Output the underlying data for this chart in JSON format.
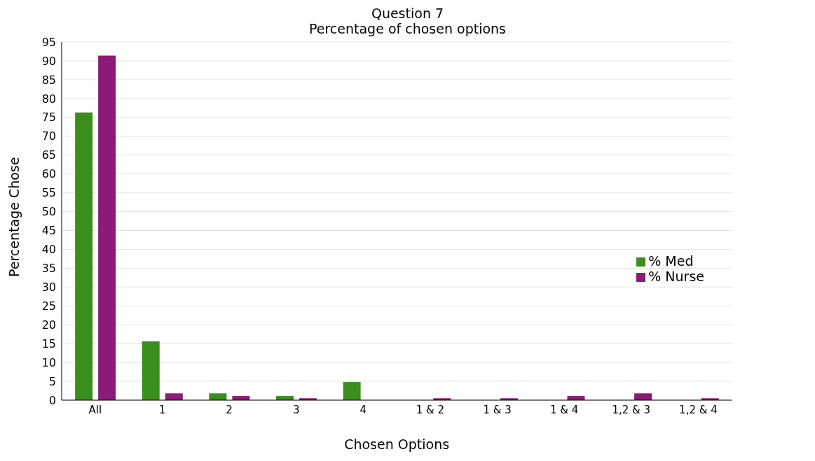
{
  "chart_data": {
    "type": "bar",
    "title": "Question 7",
    "subtitle": "Percentage of chosen options",
    "xlabel": "Chosen Options",
    "ylabel": "Percentage Chose",
    "categories": [
      "All",
      "1",
      "2",
      "3",
      "4",
      "1 & 2",
      "1 & 3",
      "1 & 4",
      "1,2 & 3",
      "1,2 & 4"
    ],
    "series": [
      {
        "name": "% Med",
        "color": "#3a8f1c",
        "values": [
          76.3,
          15.6,
          1.8,
          1.1,
          4.8,
          0,
          0,
          0,
          0,
          0
        ]
      },
      {
        "name": "% Nurse",
        "color": "#8b1a79",
        "values": [
          91.4,
          1.8,
          1.1,
          0.5,
          0,
          0.5,
          0.5,
          1.1,
          1.8,
          0.5
        ]
      }
    ],
    "ylim": [
      0,
      95
    ],
    "yticks": [
      0,
      5,
      10,
      15,
      20,
      25,
      30,
      35,
      40,
      45,
      50,
      55,
      60,
      65,
      70,
      75,
      80,
      85,
      90,
      95
    ],
    "grid": "y",
    "legend": "right"
  }
}
